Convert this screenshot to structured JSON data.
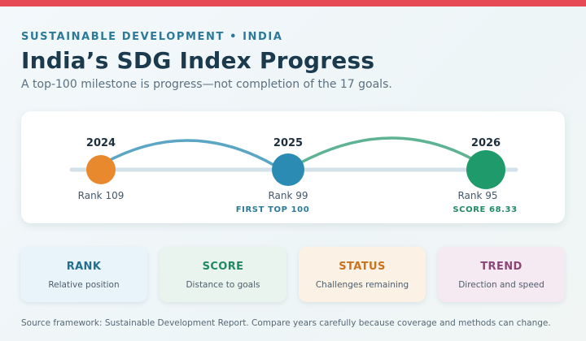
{
  "header": {
    "eyebrow": "SUSTAINABLE DEVELOPMENT • INDIA",
    "title": "India’s SDG Index Progress",
    "subtitle": "A top-100 milestone is progress—not completion of the 17 goals."
  },
  "timeline": {
    "milestones": [
      {
        "year": "2024",
        "rank": "Rank 109",
        "note": "",
        "color": "#e8892e"
      },
      {
        "year": "2025",
        "rank": "Rank 99",
        "note": "FIRST TOP 100",
        "color": "#2b8bb3"
      },
      {
        "year": "2026",
        "rank": "Rank 95",
        "note": "SCORE 68.33",
        "color": "#1f9a6a"
      }
    ],
    "track_color": "#d3e2ea",
    "arc_colors": [
      "#5aa6c4",
      "#5db393"
    ]
  },
  "cards": [
    {
      "title": "RANK",
      "description": "Relative position"
    },
    {
      "title": "SCORE",
      "description": "Distance to goals"
    },
    {
      "title": "STATUS",
      "description": "Challenges remaining"
    },
    {
      "title": "TREND",
      "description": "Direction and speed"
    }
  ],
  "footer": {
    "source": "Source framework: Sustainable Development Report. Compare years carefully because coverage and methods can change."
  }
}
